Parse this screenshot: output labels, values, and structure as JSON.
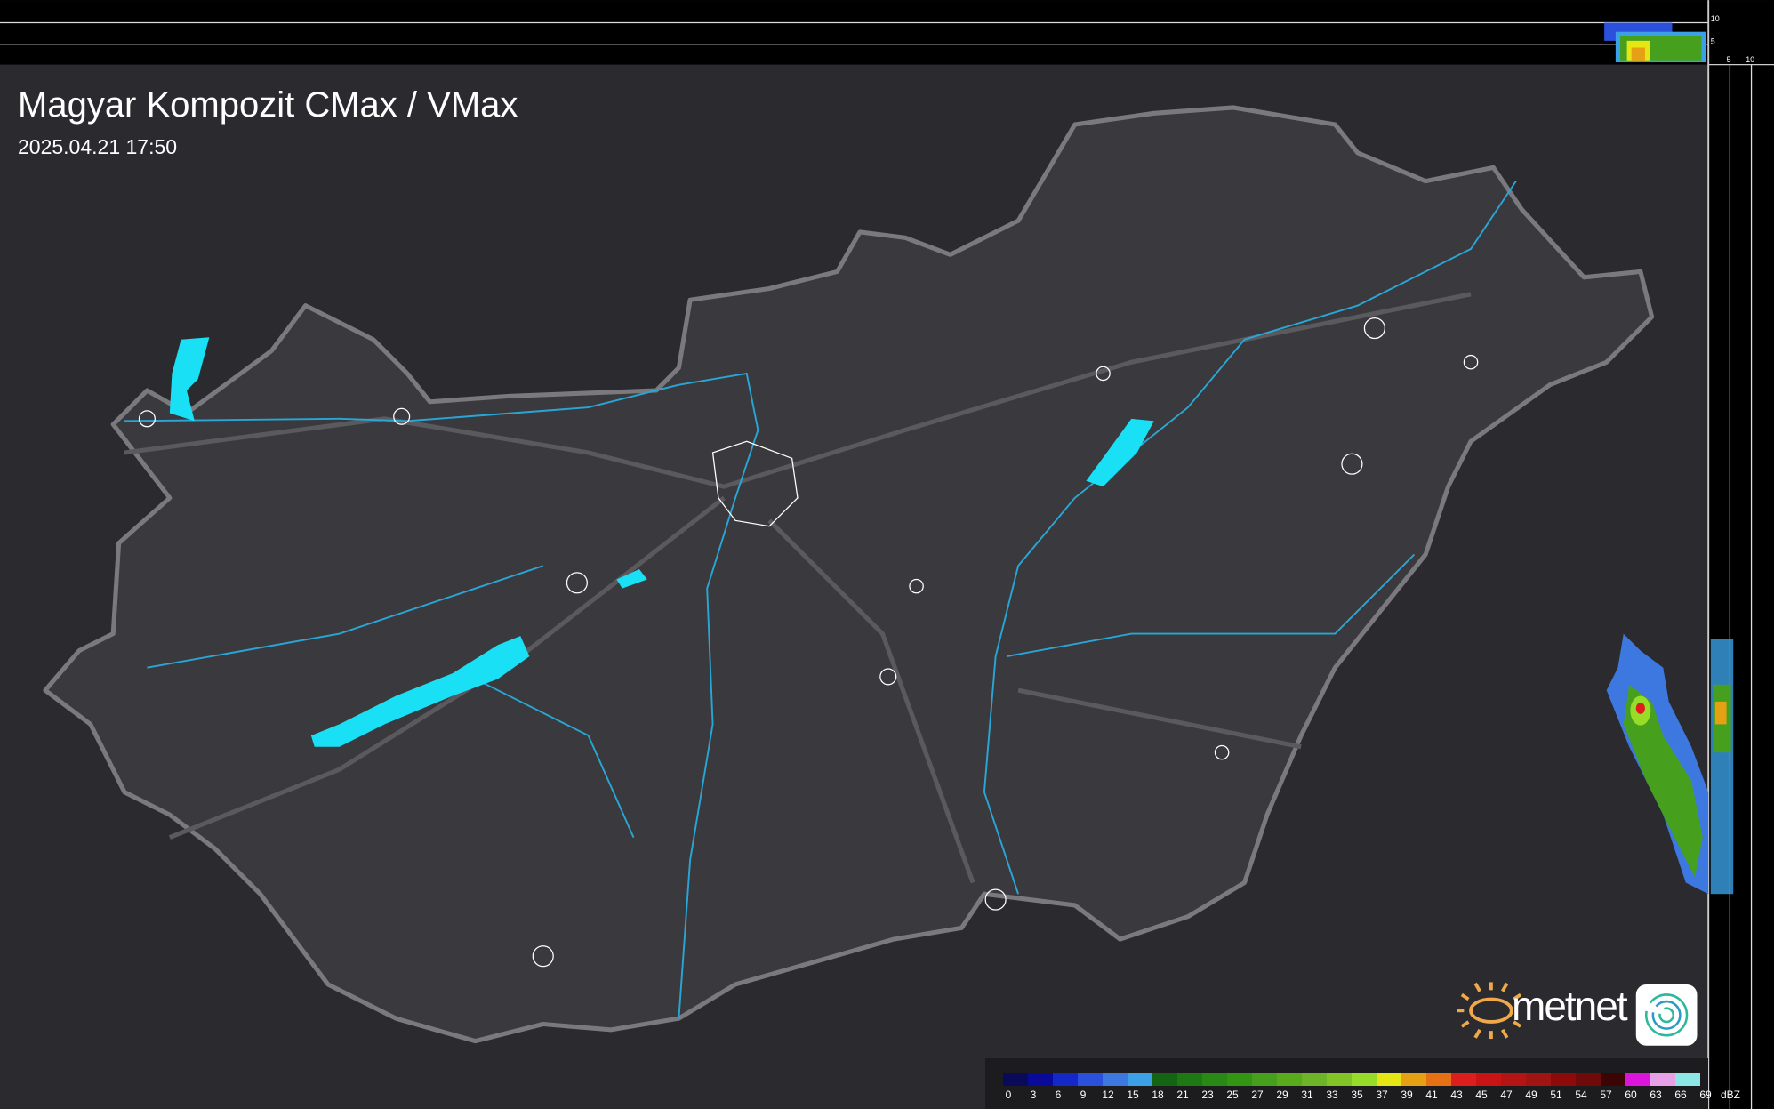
{
  "map": {
    "title": "Magyar Kompozit CMax / VMax",
    "timestamp": "2025.04.21 17:50",
    "side_profile_ticks": {
      "top_axis": [
        "10",
        "5"
      ],
      "right_axis": [
        "5",
        "10"
      ]
    },
    "colors": {
      "background": "#2b2b2f",
      "country": "#3a3a3e",
      "border": "#7a7a7e",
      "rivers": "#2aa6d6",
      "lakes": "#19e0f5",
      "cities": "#ffffff"
    }
  },
  "legend": {
    "unit": "dBZ",
    "labels": [
      "0",
      "3",
      "6",
      "9",
      "12",
      "15",
      "18",
      "21",
      "23",
      "25",
      "27",
      "29",
      "31",
      "33",
      "35",
      "37",
      "39",
      "41",
      "43",
      "45",
      "47",
      "49",
      "51",
      "54",
      "57",
      "60",
      "63",
      "66",
      "69"
    ],
    "colors": [
      "#0a0a5a",
      "#0a0a9a",
      "#1428c8",
      "#2a50dc",
      "#3c78e0",
      "#3ca0e6",
      "#146414",
      "#1e7814",
      "#288a14",
      "#329614",
      "#46a01e",
      "#5aaa1e",
      "#6eb428",
      "#82c428",
      "#96dc28",
      "#e6e614",
      "#e6a014",
      "#e67014",
      "#dc1e1e",
      "#c81414",
      "#b41414",
      "#a01414",
      "#8c0a0a",
      "#6e0a0a",
      "#3c0505",
      "#dc14dc",
      "#e6a0e6",
      "#8ce6e6"
    ]
  },
  "branding": {
    "logo_text": "metnet"
  }
}
